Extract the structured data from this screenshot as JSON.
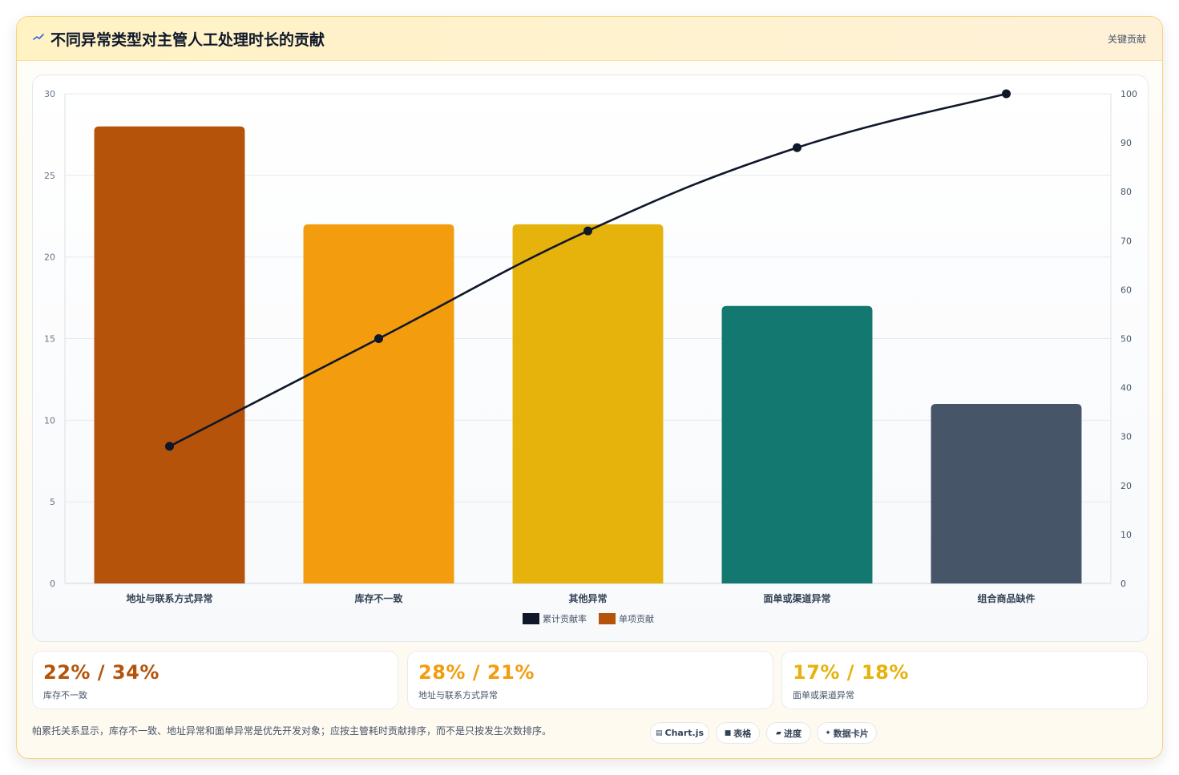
{
  "header": {
    "title": "不同异常类型对主管人工处理时长的贡献",
    "badge": "关键贡献",
    "icon": "sparkline-icon"
  },
  "chart_data": {
    "type": "bar",
    "categories": [
      "地址与联系方式异常",
      "库存不一致",
      "其他异常",
      "面单或渠道异常",
      "组合商品缺件"
    ],
    "series": [
      {
        "name": "单项贡献",
        "type": "bar",
        "axis": "left",
        "values": [
          28,
          22,
          22,
          17,
          11
        ],
        "colors": [
          "#b45309",
          "#f39c0e",
          "#e6b20c",
          "#127870",
          "#475569"
        ]
      },
      {
        "name": "累计贡献率",
        "type": "line",
        "axis": "right",
        "values": [
          28,
          50,
          72,
          89,
          100
        ],
        "color": "#0f172a"
      }
    ],
    "ylim": [
      0,
      30
    ],
    "y_ticks": [
      0,
      5,
      10,
      15,
      20,
      25,
      30
    ],
    "y2lim": [
      0,
      100
    ],
    "y2_ticks": [
      0,
      10,
      20,
      30,
      40,
      50,
      60,
      70,
      80,
      90,
      100
    ],
    "legend": [
      {
        "label": "累计贡献率",
        "color": "#0f172a"
      },
      {
        "label": "单项贡献",
        "color": "#b45309"
      }
    ],
    "legend_position": "bottom",
    "grid": true
  },
  "stats": [
    {
      "value": "22% / 34%",
      "label": "库存不一致",
      "color": "#b45309"
    },
    {
      "value": "28% / 21%",
      "label": "地址与联系方式异常",
      "color": "#f39c0e"
    },
    {
      "value": "17% / 18%",
      "label": "面单或渠道异常",
      "color": "#e6b20c"
    }
  ],
  "footer": {
    "note": "帕累托关系显示，库存不一致、地址异常和面单异常是优先开发对象；应按主管耗时贡献排序，而不是只按发生次数排序。",
    "chips": [
      {
        "icon": "▤",
        "icon_name": "chart-icon",
        "label": "Chart.js"
      },
      {
        "icon": "■",
        "icon_name": "table-icon",
        "label": "表格"
      },
      {
        "icon": "▰",
        "icon_name": "progress-icon",
        "label": "进度"
      },
      {
        "icon": "✦",
        "icon_name": "sparkle-icon",
        "label": "数据卡片"
      }
    ]
  }
}
